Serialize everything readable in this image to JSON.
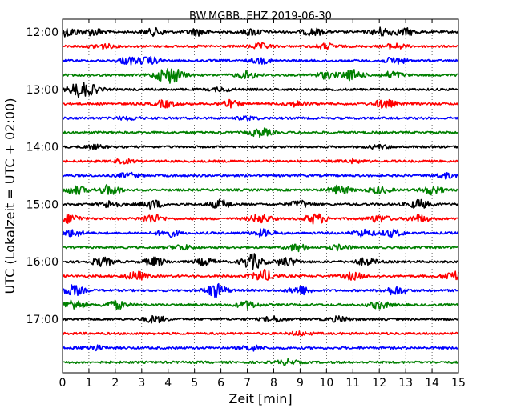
{
  "chart_data": {
    "type": "line",
    "title": "BW.MGBB..EHZ 2019-06-30",
    "xlabel": "Zeit  [min]",
    "ylabel": "UTC (Lokalzeit = UTC + 02:00)",
    "xlim": [
      0,
      15
    ],
    "x_ticks": [
      "0",
      "1",
      "2",
      "3",
      "4",
      "5",
      "6",
      "7",
      "8",
      "9",
      "10",
      "11",
      "12",
      "13",
      "14",
      "15"
    ],
    "y_ticks": [
      "12:00",
      "13:00",
      "14:00",
      "15:00",
      "16:00",
      "17:00"
    ],
    "grid": "vertical dotted",
    "trace_colors": [
      "#000000",
      "#ff0000",
      "#0000ff",
      "#008000"
    ],
    "traces": [
      {
        "start": "12:00",
        "color": "#000000",
        "envelope": [
          [
            0.2,
            5
          ],
          [
            1.2,
            4
          ],
          [
            3.5,
            4
          ],
          [
            5.1,
            4
          ],
          [
            7.2,
            4
          ],
          [
            9.5,
            4
          ],
          [
            12.1,
            5
          ],
          [
            13.0,
            4
          ]
        ]
      },
      {
        "start": "12:15",
        "color": "#ff0000",
        "envelope": [
          [
            1.5,
            3
          ],
          [
            7.5,
            3
          ],
          [
            10.0,
            3
          ],
          [
            12.6,
            3
          ]
        ]
      },
      {
        "start": "12:30",
        "color": "#0000ff",
        "envelope": [
          [
            2.5,
            4
          ],
          [
            3.3,
            4
          ],
          [
            7.5,
            3
          ],
          [
            12.6,
            4
          ]
        ]
      },
      {
        "start": "12:45",
        "color": "#008000",
        "envelope": [
          [
            3.8,
            5
          ],
          [
            4.2,
            7
          ],
          [
            7.0,
            4
          ],
          [
            10.0,
            4
          ],
          [
            11.0,
            6
          ],
          [
            12.5,
            4
          ]
        ]
      },
      {
        "start": "13:00",
        "color": "#000000",
        "envelope": [
          [
            0.6,
            8
          ],
          [
            1.1,
            4
          ],
          [
            6.0,
            2
          ]
        ]
      },
      {
        "start": "13:15",
        "color": "#ff0000",
        "envelope": [
          [
            3.9,
            4
          ],
          [
            6.3,
            4
          ],
          [
            8.9,
            3
          ],
          [
            12.2,
            5
          ]
        ]
      },
      {
        "start": "13:30",
        "color": "#0000ff",
        "envelope": [
          [
            2.5,
            2
          ],
          [
            7.0,
            2
          ]
        ]
      },
      {
        "start": "13:45",
        "color": "#008000",
        "envelope": [
          [
            7.5,
            5
          ]
        ]
      },
      {
        "start": "14:00",
        "color": "#000000",
        "envelope": [
          [
            1.2,
            2
          ],
          [
            12.0,
            2
          ]
        ]
      },
      {
        "start": "14:15",
        "color": "#ff0000",
        "envelope": [
          [
            2.3,
            2
          ],
          [
            11.0,
            2
          ]
        ]
      },
      {
        "start": "14:30",
        "color": "#0000ff",
        "envelope": [
          [
            2.5,
            3
          ],
          [
            14.5,
            3
          ]
        ]
      },
      {
        "start": "14:45",
        "color": "#008000",
        "envelope": [
          [
            0.5,
            5
          ],
          [
            1.8,
            6
          ],
          [
            10.5,
            5
          ],
          [
            12.0,
            4
          ],
          [
            14.0,
            5
          ]
        ]
      },
      {
        "start": "15:00",
        "color": "#000000",
        "envelope": [
          [
            1.8,
            4
          ],
          [
            3.4,
            5
          ],
          [
            6.0,
            5
          ],
          [
            9.0,
            4
          ],
          [
            13.5,
            5
          ]
        ]
      },
      {
        "start": "15:15",
        "color": "#ff0000",
        "envelope": [
          [
            0.3,
            5
          ],
          [
            3.4,
            5
          ],
          [
            7.5,
            5
          ],
          [
            9.6,
            6
          ],
          [
            12.0,
            4
          ],
          [
            13.5,
            4
          ]
        ]
      },
      {
        "start": "15:30",
        "color": "#0000ff",
        "envelope": [
          [
            0.4,
            4
          ],
          [
            4.0,
            4
          ],
          [
            7.6,
            4
          ],
          [
            11.4,
            4
          ],
          [
            12.5,
            4
          ]
        ]
      },
      {
        "start": "15:45",
        "color": "#008000",
        "envelope": [
          [
            4.5,
            3
          ],
          [
            8.9,
            4
          ],
          [
            10.5,
            3
          ]
        ]
      },
      {
        "start": "16:00",
        "color": "#000000",
        "envelope": [
          [
            1.5,
            5
          ],
          [
            3.5,
            5
          ],
          [
            5.4,
            4
          ],
          [
            7.2,
            9
          ],
          [
            8.5,
            5
          ],
          [
            11.5,
            4
          ]
        ]
      },
      {
        "start": "16:15",
        "color": "#ff0000",
        "envelope": [
          [
            2.8,
            5
          ],
          [
            7.6,
            7
          ],
          [
            11.0,
            4
          ],
          [
            14.8,
            6
          ]
        ]
      },
      {
        "start": "16:30",
        "color": "#0000ff",
        "envelope": [
          [
            0.4,
            6
          ],
          [
            5.8,
            8
          ],
          [
            9.0,
            5
          ],
          [
            12.6,
            5
          ]
        ]
      },
      {
        "start": "16:45",
        "color": "#008000",
        "envelope": [
          [
            0.4,
            6
          ],
          [
            2.0,
            5
          ],
          [
            7.0,
            4
          ],
          [
            12.0,
            4
          ]
        ]
      },
      {
        "start": "17:00",
        "color": "#000000",
        "envelope": [
          [
            3.5,
            4
          ],
          [
            8.0,
            3
          ],
          [
            10.5,
            3
          ]
        ]
      },
      {
        "start": "17:15",
        "color": "#ff0000",
        "envelope": [
          [
            9.0,
            2
          ]
        ]
      },
      {
        "start": "17:30",
        "color": "#0000ff",
        "envelope": [
          [
            1.2,
            3
          ],
          [
            7.2,
            3
          ]
        ]
      },
      {
        "start": "17:45",
        "color": "#008000",
        "envelope": [
          [
            8.5,
            3
          ]
        ]
      }
    ]
  }
}
